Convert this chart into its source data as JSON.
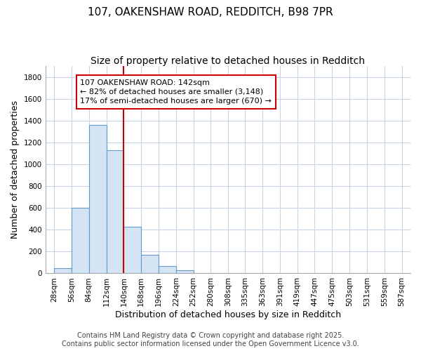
{
  "title": "107, OAKENSHAW ROAD, REDDITCH, B98 7PR",
  "subtitle": "Size of property relative to detached houses in Redditch",
  "xlabel": "Distribution of detached houses by size in Redditch",
  "ylabel": "Number of detached properties",
  "bin_edges": [
    28,
    56,
    84,
    112,
    140,
    168,
    196,
    224,
    252,
    280,
    308,
    335,
    363,
    391,
    419,
    447,
    475,
    503,
    531,
    559,
    587
  ],
  "bar_heights": [
    50,
    600,
    1360,
    1130,
    430,
    170,
    70,
    30,
    5,
    0,
    0,
    0,
    0,
    0,
    0,
    0,
    0,
    0,
    0,
    0
  ],
  "bar_color": "#d4e4f4",
  "bar_edge_color": "#6699cc",
  "bar_linewidth": 0.8,
  "red_line_x": 140,
  "red_line_color": "#cc0000",
  "annotation_text": "107 OAKENSHAW ROAD: 142sqm\n← 82% of detached houses are smaller (3,148)\n17% of semi-detached houses are larger (670) →",
  "annotation_box_color": "white",
  "annotation_box_edge": "#cc0000",
  "ylim": [
    0,
    1900
  ],
  "yticks": [
    0,
    200,
    400,
    600,
    800,
    1000,
    1200,
    1400,
    1600,
    1800
  ],
  "grid_color": "#c8d4e0",
  "plot_bg_color": "#ffffff",
  "fig_bg_color": "#ffffff",
  "footer_line1": "Contains HM Land Registry data © Crown copyright and database right 2025.",
  "footer_line2": "Contains public sector information licensed under the Open Government Licence v3.0.",
  "title_fontsize": 11,
  "subtitle_fontsize": 10,
  "xlabel_fontsize": 9,
  "ylabel_fontsize": 9,
  "tick_fontsize": 7.5,
  "annotation_fontsize": 8,
  "footer_fontsize": 7
}
